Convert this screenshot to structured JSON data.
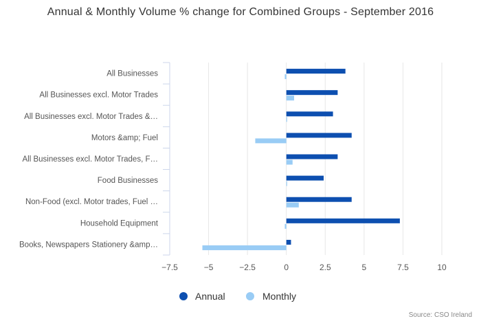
{
  "chart_data": {
    "type": "bar",
    "orientation": "horizontal",
    "title": "Annual & Monthly Volume % change for Combined Groups - September 2016",
    "categories": [
      "All Businesses",
      "All Businesses excl. Motor Trades",
      "All Businesses excl. Motor Trades &…",
      "Motors &amp; Fuel",
      "All Businesses excl. Motor Trades, F…",
      "Food Businesses",
      "Non-Food (excl. Motor trades, Fuel …",
      "Household Equipment",
      "Books, Newspapers Stationery &amp…"
    ],
    "series": [
      {
        "name": "Annual",
        "color": "#0d4fb0",
        "values": [
          3.8,
          3.3,
          3.0,
          4.2,
          3.3,
          2.4,
          4.2,
          7.3,
          0.3
        ]
      },
      {
        "name": "Monthly",
        "color": "#99ccf5",
        "values": [
          -0.1,
          0.5,
          0.05,
          -2.0,
          0.4,
          0.05,
          0.8,
          -0.1,
          -5.4
        ]
      }
    ],
    "xlim": [
      -7.5,
      10
    ],
    "xticks": [
      "−7.5",
      "−5",
      "−2.5",
      "0",
      "2.5",
      "5",
      "7.5",
      "10"
    ],
    "xtick_values": [
      -7.5,
      -5,
      -2.5,
      0,
      2.5,
      5,
      7.5,
      10
    ],
    "xlabel": "",
    "ylabel": "",
    "grid": true,
    "legend_position": "bottom-center",
    "credit": "Source: CSO Ireland"
  }
}
